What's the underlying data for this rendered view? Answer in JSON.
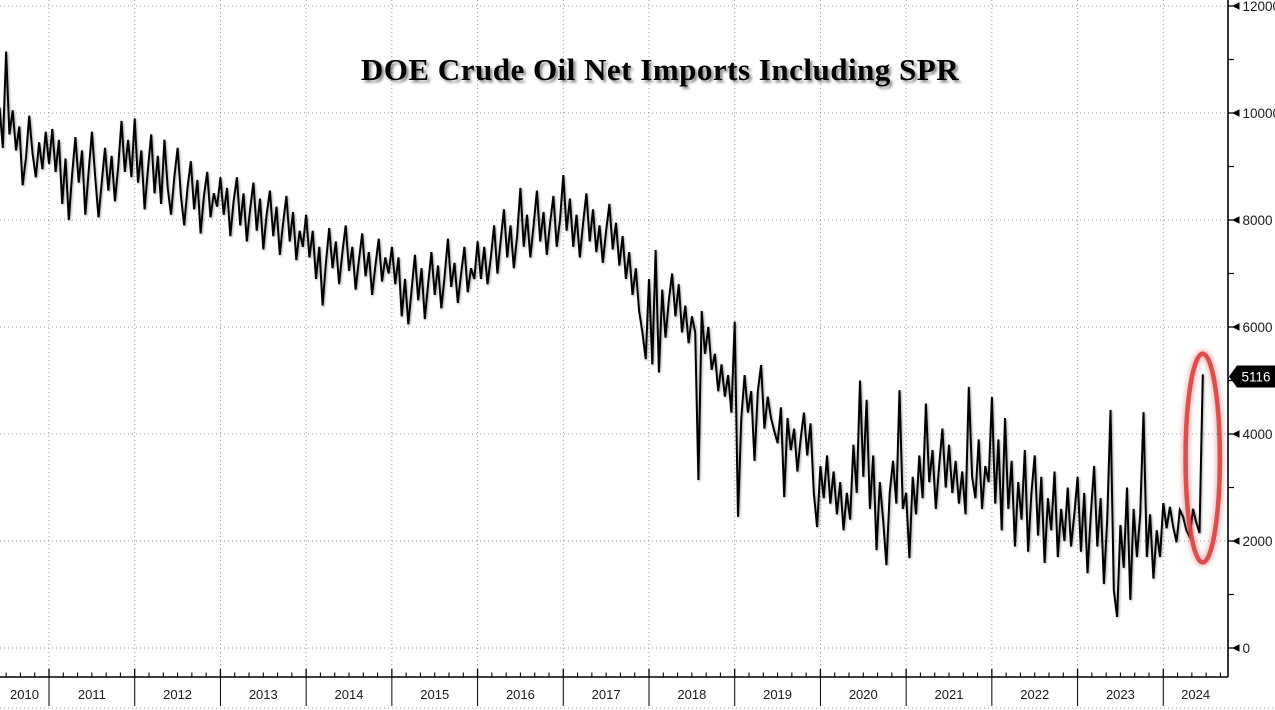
{
  "title": "DOE Crude Oil Net Imports Including SPR",
  "colors": {
    "line": "#000000",
    "grid": "#9a9a9a",
    "axis": "#000000",
    "tick_label": "#1b1b1b",
    "highlight_ellipse": "#dc4140",
    "badge_bg": "#000000",
    "badge_text": "#ffffff"
  },
  "chart_data": {
    "type": "line",
    "title": "DOE Crude Oil Net Imports Including SPR",
    "x_tick_years": [
      2010,
      2011,
      2012,
      2013,
      2014,
      2015,
      2016,
      2017,
      2018,
      2019,
      2020,
      2021,
      2022,
      2023,
      2024
    ],
    "y_ticks": [
      0,
      2000,
      4000,
      6000,
      8000,
      10000,
      12000
    ],
    "y_minor_step": 1000,
    "ylim": [
      -600,
      12150
    ],
    "xlim": [
      2010.42,
      2024.76
    ],
    "grid": "dotted",
    "legend": "none",
    "x_start": 2010.4231,
    "x_step_years": 0.0384615,
    "last_value": 5116,
    "last_value_label": "5116",
    "annotation": {
      "shape": "ellipse",
      "t_center": 2024.46,
      "v_center": 3550,
      "rx_years": 0.2,
      "ry_units": 1950
    },
    "values": [
      10100,
      9350,
      11150,
      9600,
      10050,
      9300,
      9750,
      8650,
      9150,
      9950,
      9250,
      8800,
      9450,
      8950,
      9650,
      9050,
      9700,
      8900,
      9500,
      8300,
      9150,
      8000,
      8850,
      9550,
      8700,
      9300,
      8100,
      8900,
      9650,
      8800,
      8050,
      8700,
      9350,
      8550,
      9200,
      8350,
      9000,
      9850,
      8900,
      9500,
      8800,
      9900,
      8700,
      9300,
      8200,
      8950,
      9600,
      8500,
      9200,
      8300,
      9500,
      8600,
      8100,
      8800,
      9350,
      8450,
      7900,
      8600,
      9100,
      8200,
      8750,
      7750,
      8450,
      8900,
      8050,
      8500,
      8250,
      8800,
      8100,
      8600,
      7700,
      8350,
      8800,
      7900,
      8500,
      7600,
      8200,
      8700,
      7800,
      8400,
      7450,
      8100,
      8550,
      7700,
      8250,
      7350,
      7950,
      8450,
      7600,
      8150,
      7250,
      7800,
      7500,
      8100,
      7300,
      7800,
      6900,
      7500,
      6400,
      7200,
      7850,
      7100,
      7600,
      6800,
      7400,
      7900,
      7050,
      7500,
      6700,
      7250,
      7750,
      6950,
      7400,
      6600,
      7150,
      7650,
      6850,
      7300,
      7000,
      7500,
      6800,
      7300,
      6200,
      6900,
      6050,
      6700,
      7350,
      6500,
      7100,
      6150,
      6800,
      7400,
      6600,
      7150,
      6350,
      6950,
      7650,
      6750,
      7200,
      6450,
      7000,
      7500,
      6650,
      7100,
      6900,
      7600,
      6900,
      7500,
      6800,
      7300,
      7900,
      7000,
      7600,
      8200,
      7300,
      7900,
      7100,
      7700,
      8600,
      7500,
      8100,
      7300,
      7900,
      8550,
      7600,
      8150,
      7350,
      7950,
      8450,
      7500,
      8000,
      8840,
      7800,
      8400,
      7500,
      8100,
      7300,
      7950,
      8500,
      7600,
      8200,
      7400,
      7900,
      7200,
      7800,
      8300,
      7450,
      7950,
      7150,
      7700,
      6900,
      7400,
      6600,
      7100,
      6300,
      5900,
      5400,
      6900,
      5300,
      7440,
      5150,
      6700,
      5800,
      6500,
      7000,
      6200,
      6800,
      5900,
      6400,
      5700,
      6200,
      5900,
      3140,
      6300,
      5500,
      6000,
      5200,
      5500,
      4800,
      5300,
      4700,
      5100,
      4400,
      6100,
      2450,
      4300,
      5100,
      4400,
      4800,
      3500,
      4800,
      5290,
      4100,
      4700,
      4300,
      4050,
      3830,
      4500,
      2820,
      4300,
      3700,
      4100,
      3300,
      3900,
      4400,
      3600,
      4200,
      2900,
      2260,
      3400,
      2800,
      3600,
      2700,
      3300,
      2500,
      3100,
      2200,
      2900,
      2400,
      3800,
      2900,
      5000,
      3200,
      4640,
      2600,
      3600,
      1830,
      3100,
      2400,
      1550,
      2900,
      3500,
      2700,
      4820,
      2600,
      2900,
      1680,
      3200,
      2500,
      3600,
      2800,
      4570,
      3100,
      3700,
      2600,
      3400,
      4100,
      3000,
      3800,
      2900,
      3500,
      2700,
      3300,
      2500,
      4880,
      3200,
      2800,
      3900,
      2600,
      3400,
      3100,
      4690,
      2700,
      3900,
      2200,
      4300,
      2600,
      3500,
      1900,
      3100,
      2400,
      3700,
      1800,
      2900,
      3600,
      2100,
      3200,
      1589,
      2800,
      2200,
      3300,
      1700,
      2600,
      2000,
      3000,
      1900,
      2500,
      3200,
      1800,
      2900,
      1400,
      2500,
      3400,
      1900,
      2800,
      1200,
      2400,
      4450,
      1080,
      580,
      2300,
      1500,
      3000,
      900,
      2600,
      1700,
      2500,
      4410,
      1700,
      2500,
      1300,
      2200,
      1700,
      2710,
      2240,
      2640,
      2260,
      1980,
      2580,
      2450,
      2200,
      2075,
      2600,
      2350,
      2150,
      5116
    ]
  }
}
